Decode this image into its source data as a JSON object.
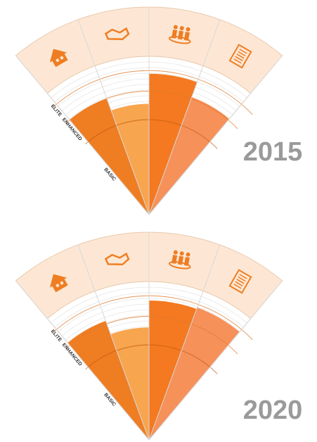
{
  "chart_data": [
    {
      "type": "polar_bar",
      "title": "2015",
      "categories": [
        null,
        null,
        null,
        null
      ],
      "values": [
        78,
        70,
        89,
        79
      ],
      "colors": [
        "#ef7d22",
        "#f8a54f",
        "#f47920",
        "#f6915a"
      ],
      "ylim": [
        0,
        100
      ],
      "yticks": [
        {
          "value": 60,
          "label": "BASIC"
        },
        {
          "value": 78,
          "label": "ENHANCED"
        },
        {
          "value": 91,
          "label": "ELITE"
        }
      ],
      "grid": true
    },
    {
      "type": "polar_bar",
      "title": "2020",
      "categories": [
        null,
        null,
        null,
        null
      ],
      "values": [
        80,
        71,
        88,
        89
      ],
      "colors": [
        "#ef7d22",
        "#f8a54f",
        "#f47920",
        "#f6915a"
      ],
      "ylim": [
        0,
        100
      ],
      "yticks": [
        {
          "value": 60,
          "label": "BASIC"
        },
        {
          "value": 78,
          "label": "ENHANCED"
        },
        {
          "value": 91,
          "label": "ELITE"
        }
      ],
      "grid": true
    }
  ]
}
